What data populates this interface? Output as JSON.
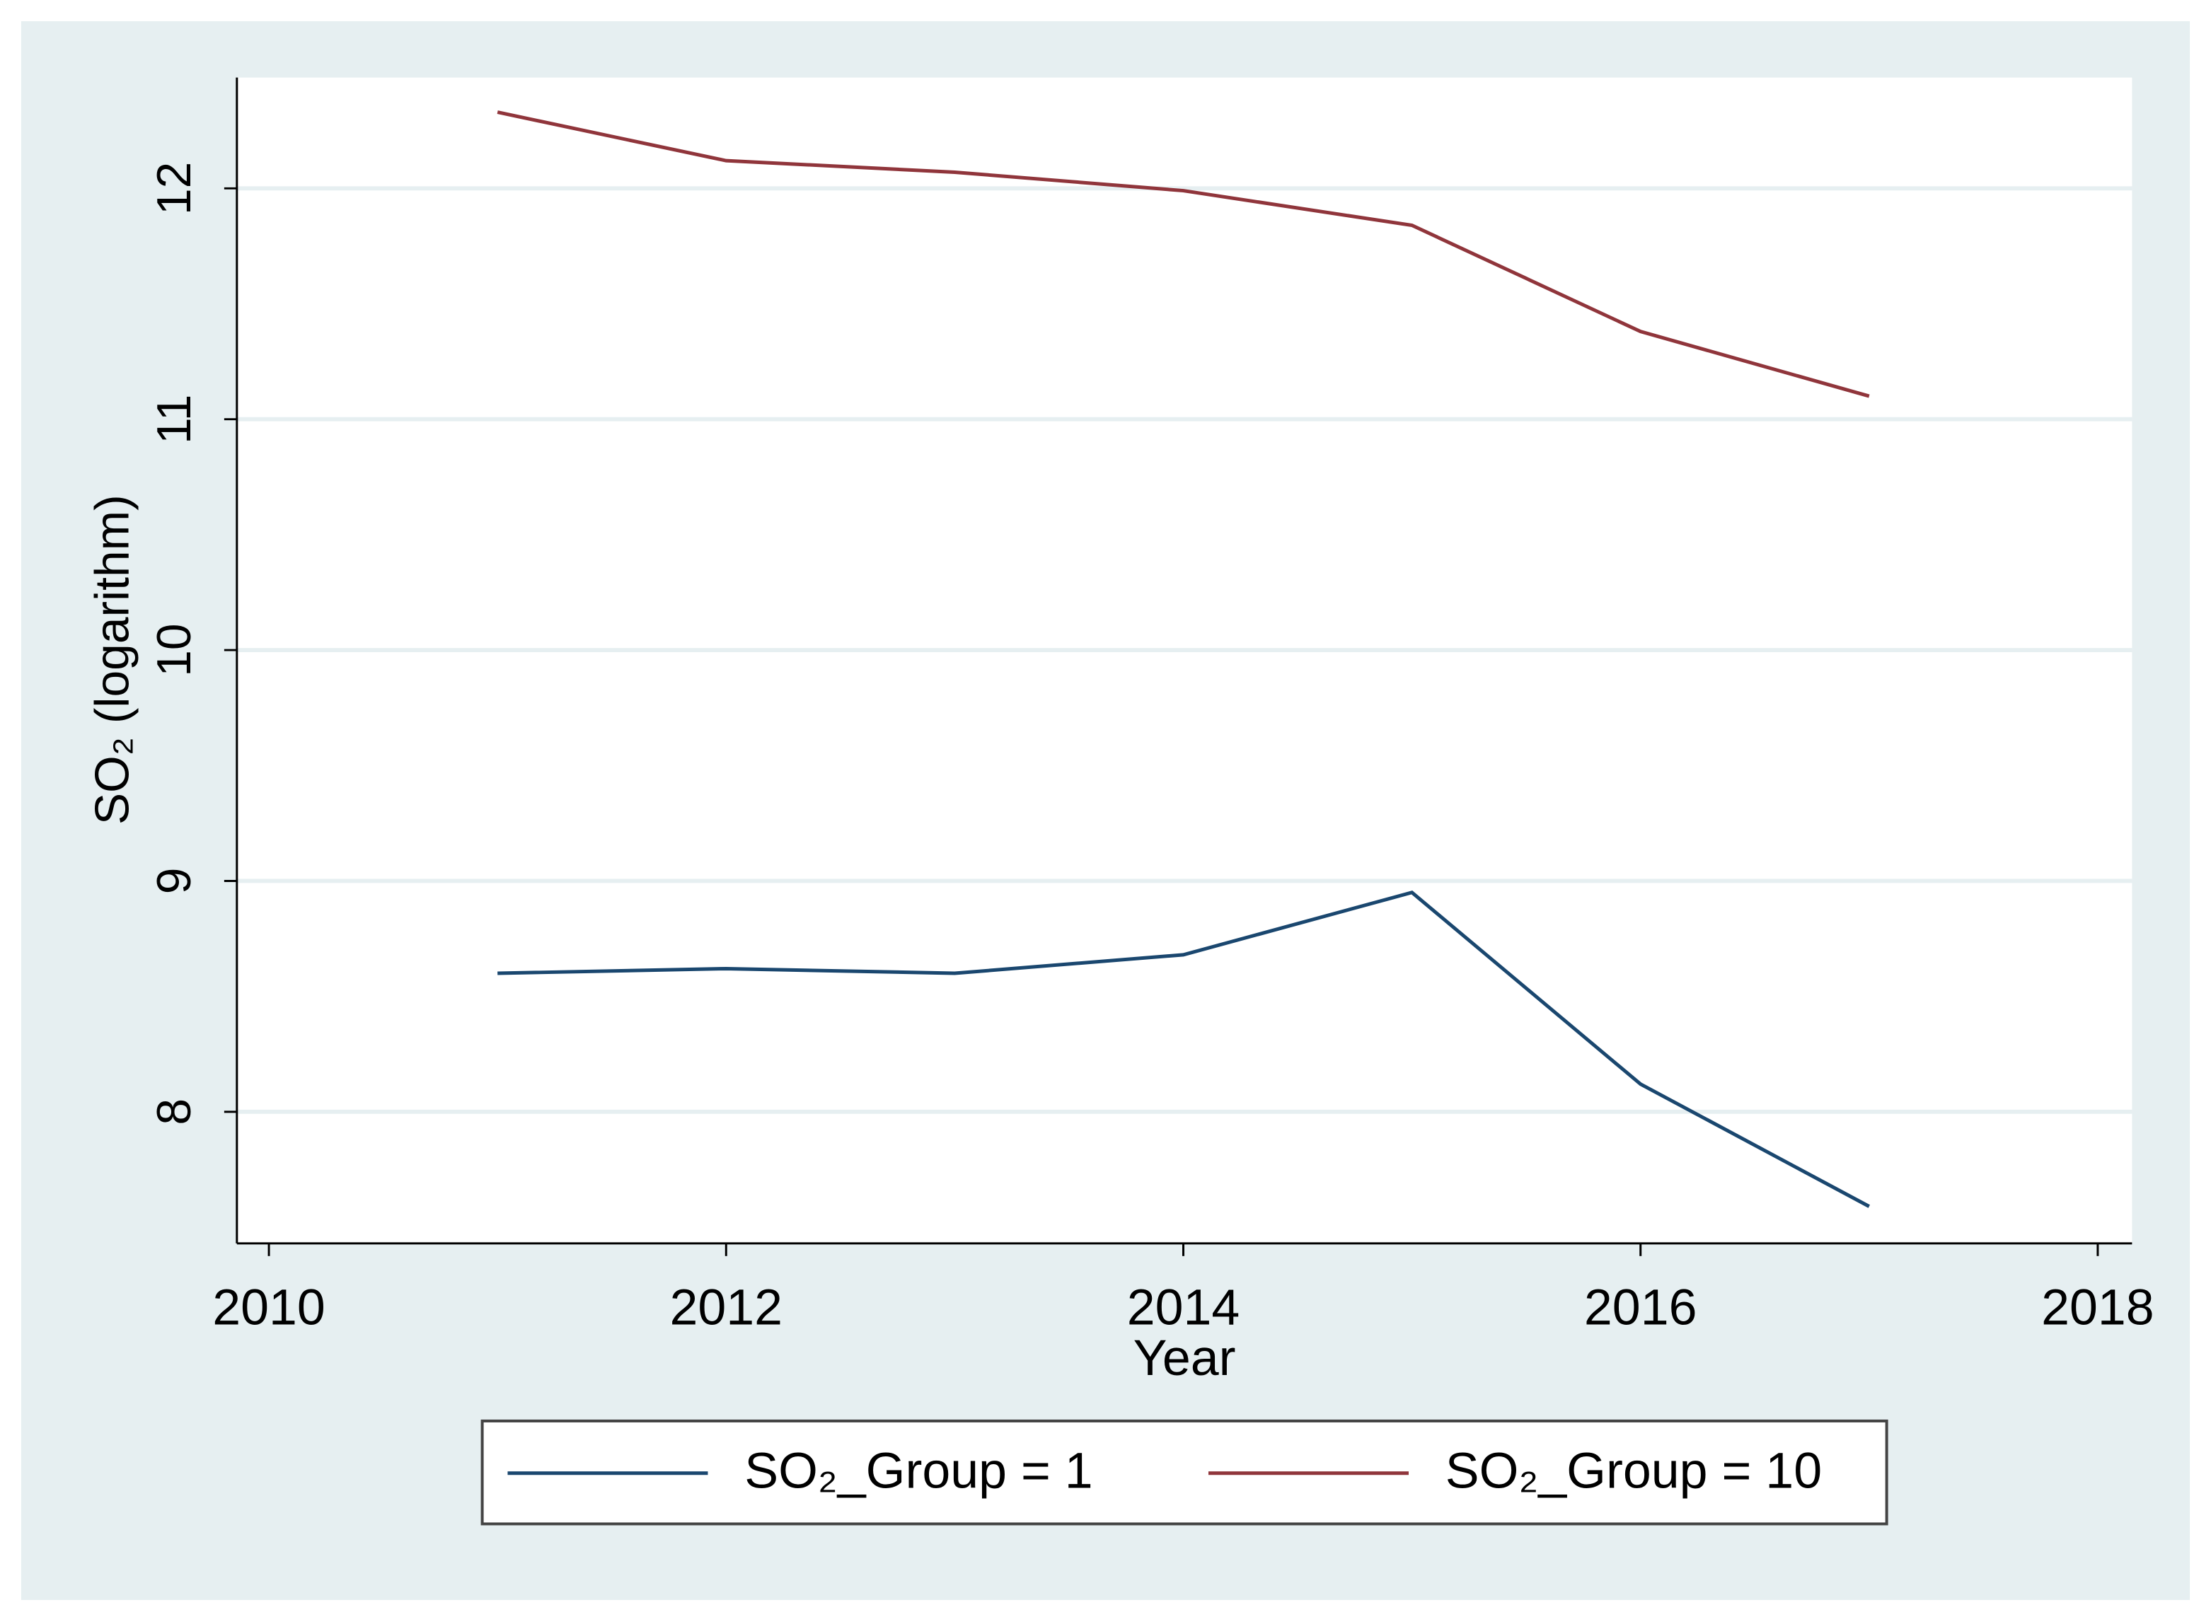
{
  "chart_data": {
    "type": "line",
    "y_label": "SO₂ (logarithm)",
    "x_label": "Year",
    "x": [
      2011,
      2012,
      2013,
      2014,
      2015,
      2016,
      2017
    ],
    "series": [
      {
        "name": "SO₂_Group = 1",
        "color": "#1a476f",
        "values": [
          8.6,
          8.62,
          8.6,
          8.68,
          8.95,
          8.12,
          7.59
        ]
      },
      {
        "name": "SO₂_Group = 10",
        "color": "#90353b",
        "values": [
          12.33,
          12.12,
          12.07,
          11.99,
          11.84,
          11.38,
          11.1
        ]
      }
    ],
    "xlim": [
      2009.86,
      2018.15
    ],
    "xticks": [
      2010,
      2012,
      2014,
      2016,
      2018
    ],
    "ylim": [
      7.43,
      12.48
    ],
    "yticks": [
      8,
      9,
      10,
      11,
      12
    ],
    "grid": true,
    "legend": "bottom"
  }
}
